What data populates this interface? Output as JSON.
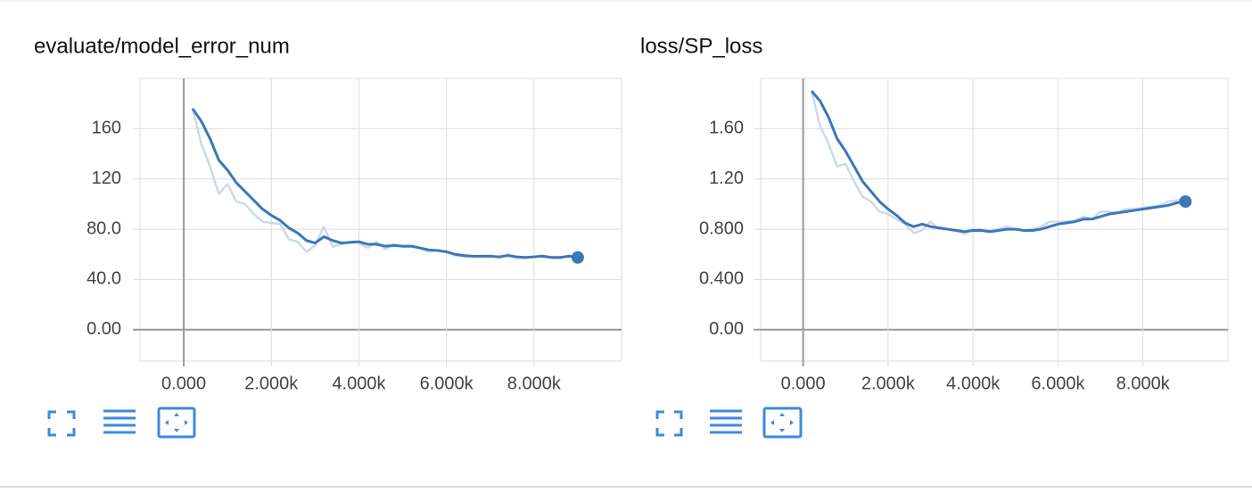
{
  "chart_data": [
    {
      "type": "line",
      "title": "evaluate/model_error_num",
      "x": [
        200,
        400,
        600,
        800,
        1000,
        1200,
        1400,
        1600,
        1800,
        2000,
        2200,
        2400,
        2600,
        2800,
        3000,
        3200,
        3400,
        3600,
        3800,
        4000,
        4200,
        4400,
        4600,
        4800,
        5000,
        5200,
        5400,
        5600,
        5800,
        6000,
        6200,
        6400,
        6600,
        6800,
        7000,
        7200,
        7400,
        7600,
        7800,
        8000,
        8200,
        8400,
        8600,
        8800,
        9000
      ],
      "series": [
        {
          "color": "#c9dbec",
          "values": [
            176,
            148,
            130,
            108,
            116,
            102,
            100,
            92,
            86,
            85,
            84,
            72,
            70,
            62,
            67,
            82,
            66,
            68,
            70,
            69,
            65,
            70,
            64,
            68,
            66,
            66,
            65,
            62,
            63,
            62,
            59,
            58,
            58.5,
            58,
            59,
            57,
            60,
            57,
            57,
            58,
            59,
            57,
            57,
            59,
            57
          ]
        },
        {
          "color": "#3a78b8",
          "values": [
            176,
            166,
            152,
            135,
            127,
            117,
            110,
            103,
            96,
            91,
            87,
            81,
            77,
            71,
            69,
            74,
            71,
            69,
            69.5,
            70,
            68,
            68,
            66.5,
            67,
            66.5,
            66.5,
            65,
            63.5,
            63,
            62,
            60,
            59,
            58.5,
            58.5,
            58.5,
            58,
            59,
            58,
            57.5,
            58,
            58.5,
            57.5,
            57.5,
            58.5,
            57.5
          ]
        }
      ],
      "xlim": [
        -1000,
        10000
      ],
      "ylim": [
        -25,
        200
      ],
      "xticks": [
        {
          "value": 0,
          "label": "0.000"
        },
        {
          "value": 2000,
          "label": "2.000k"
        },
        {
          "value": 4000,
          "label": "4.000k"
        },
        {
          "value": 6000,
          "label": "6.000k"
        },
        {
          "value": 8000,
          "label": "8.000k"
        }
      ],
      "yticks": [
        {
          "value": 0,
          "label": "0.00"
        },
        {
          "value": 40,
          "label": "40.0"
        },
        {
          "value": 80,
          "label": "80.0"
        },
        120,
        160
      ],
      "grid": true
    },
    {
      "type": "line",
      "title": "loss/SP_loss",
      "x": [
        200,
        400,
        600,
        800,
        1000,
        1200,
        1400,
        1600,
        1800,
        2000,
        2200,
        2400,
        2600,
        2800,
        3000,
        3200,
        3400,
        3600,
        3800,
        4000,
        4200,
        4400,
        4600,
        4800,
        5000,
        5200,
        5400,
        5600,
        5800,
        6000,
        6200,
        6400,
        6600,
        6800,
        7000,
        7200,
        7400,
        7600,
        7800,
        8000,
        8200,
        8400,
        8600,
        8800,
        9000
      ],
      "series": [
        {
          "color": "#c9dbec",
          "values": [
            1.9,
            1.62,
            1.48,
            1.3,
            1.32,
            1.18,
            1.06,
            1.02,
            0.94,
            0.92,
            0.88,
            0.84,
            0.77,
            0.79,
            0.86,
            0.8,
            0.8,
            0.79,
            0.76,
            0.8,
            0.8,
            0.79,
            0.8,
            0.82,
            0.8,
            0.79,
            0.8,
            0.82,
            0.86,
            0.86,
            0.86,
            0.87,
            0.9,
            0.88,
            0.94,
            0.94,
            0.93,
            0.96,
            0.96,
            0.97,
            0.98,
            0.99,
            1.02,
            1.03,
            1.03
          ]
        },
        {
          "color": "#3a78b8",
          "values": [
            1.9,
            1.82,
            1.69,
            1.52,
            1.42,
            1.3,
            1.18,
            1.1,
            1.02,
            0.96,
            0.91,
            0.85,
            0.82,
            0.84,
            0.82,
            0.81,
            0.8,
            0.79,
            0.78,
            0.79,
            0.79,
            0.78,
            0.79,
            0.8,
            0.8,
            0.79,
            0.79,
            0.8,
            0.82,
            0.84,
            0.85,
            0.86,
            0.88,
            0.88,
            0.9,
            0.92,
            0.93,
            0.94,
            0.95,
            0.96,
            0.97,
            0.98,
            0.99,
            1.01,
            1.02
          ]
        }
      ],
      "xlim": [
        -1000,
        10000
      ],
      "ylim": [
        -0.25,
        2.0
      ],
      "xticks": [
        {
          "value": 0,
          "label": "0.000"
        },
        {
          "value": 2000,
          "label": "2.000k"
        },
        {
          "value": 4000,
          "label": "4.000k"
        },
        {
          "value": 6000,
          "label": "6.000k"
        },
        {
          "value": 8000,
          "label": "8.000k"
        }
      ],
      "yticks": [
        {
          "value": 0,
          "label": "0.00"
        },
        {
          "value": 0.4,
          "label": "0.400"
        },
        {
          "value": 0.8,
          "label": "0.800"
        },
        {
          "value": 1.2,
          "label": "1.20"
        },
        {
          "value": 1.6,
          "label": "1.60"
        }
      ],
      "grid": true
    }
  ]
}
